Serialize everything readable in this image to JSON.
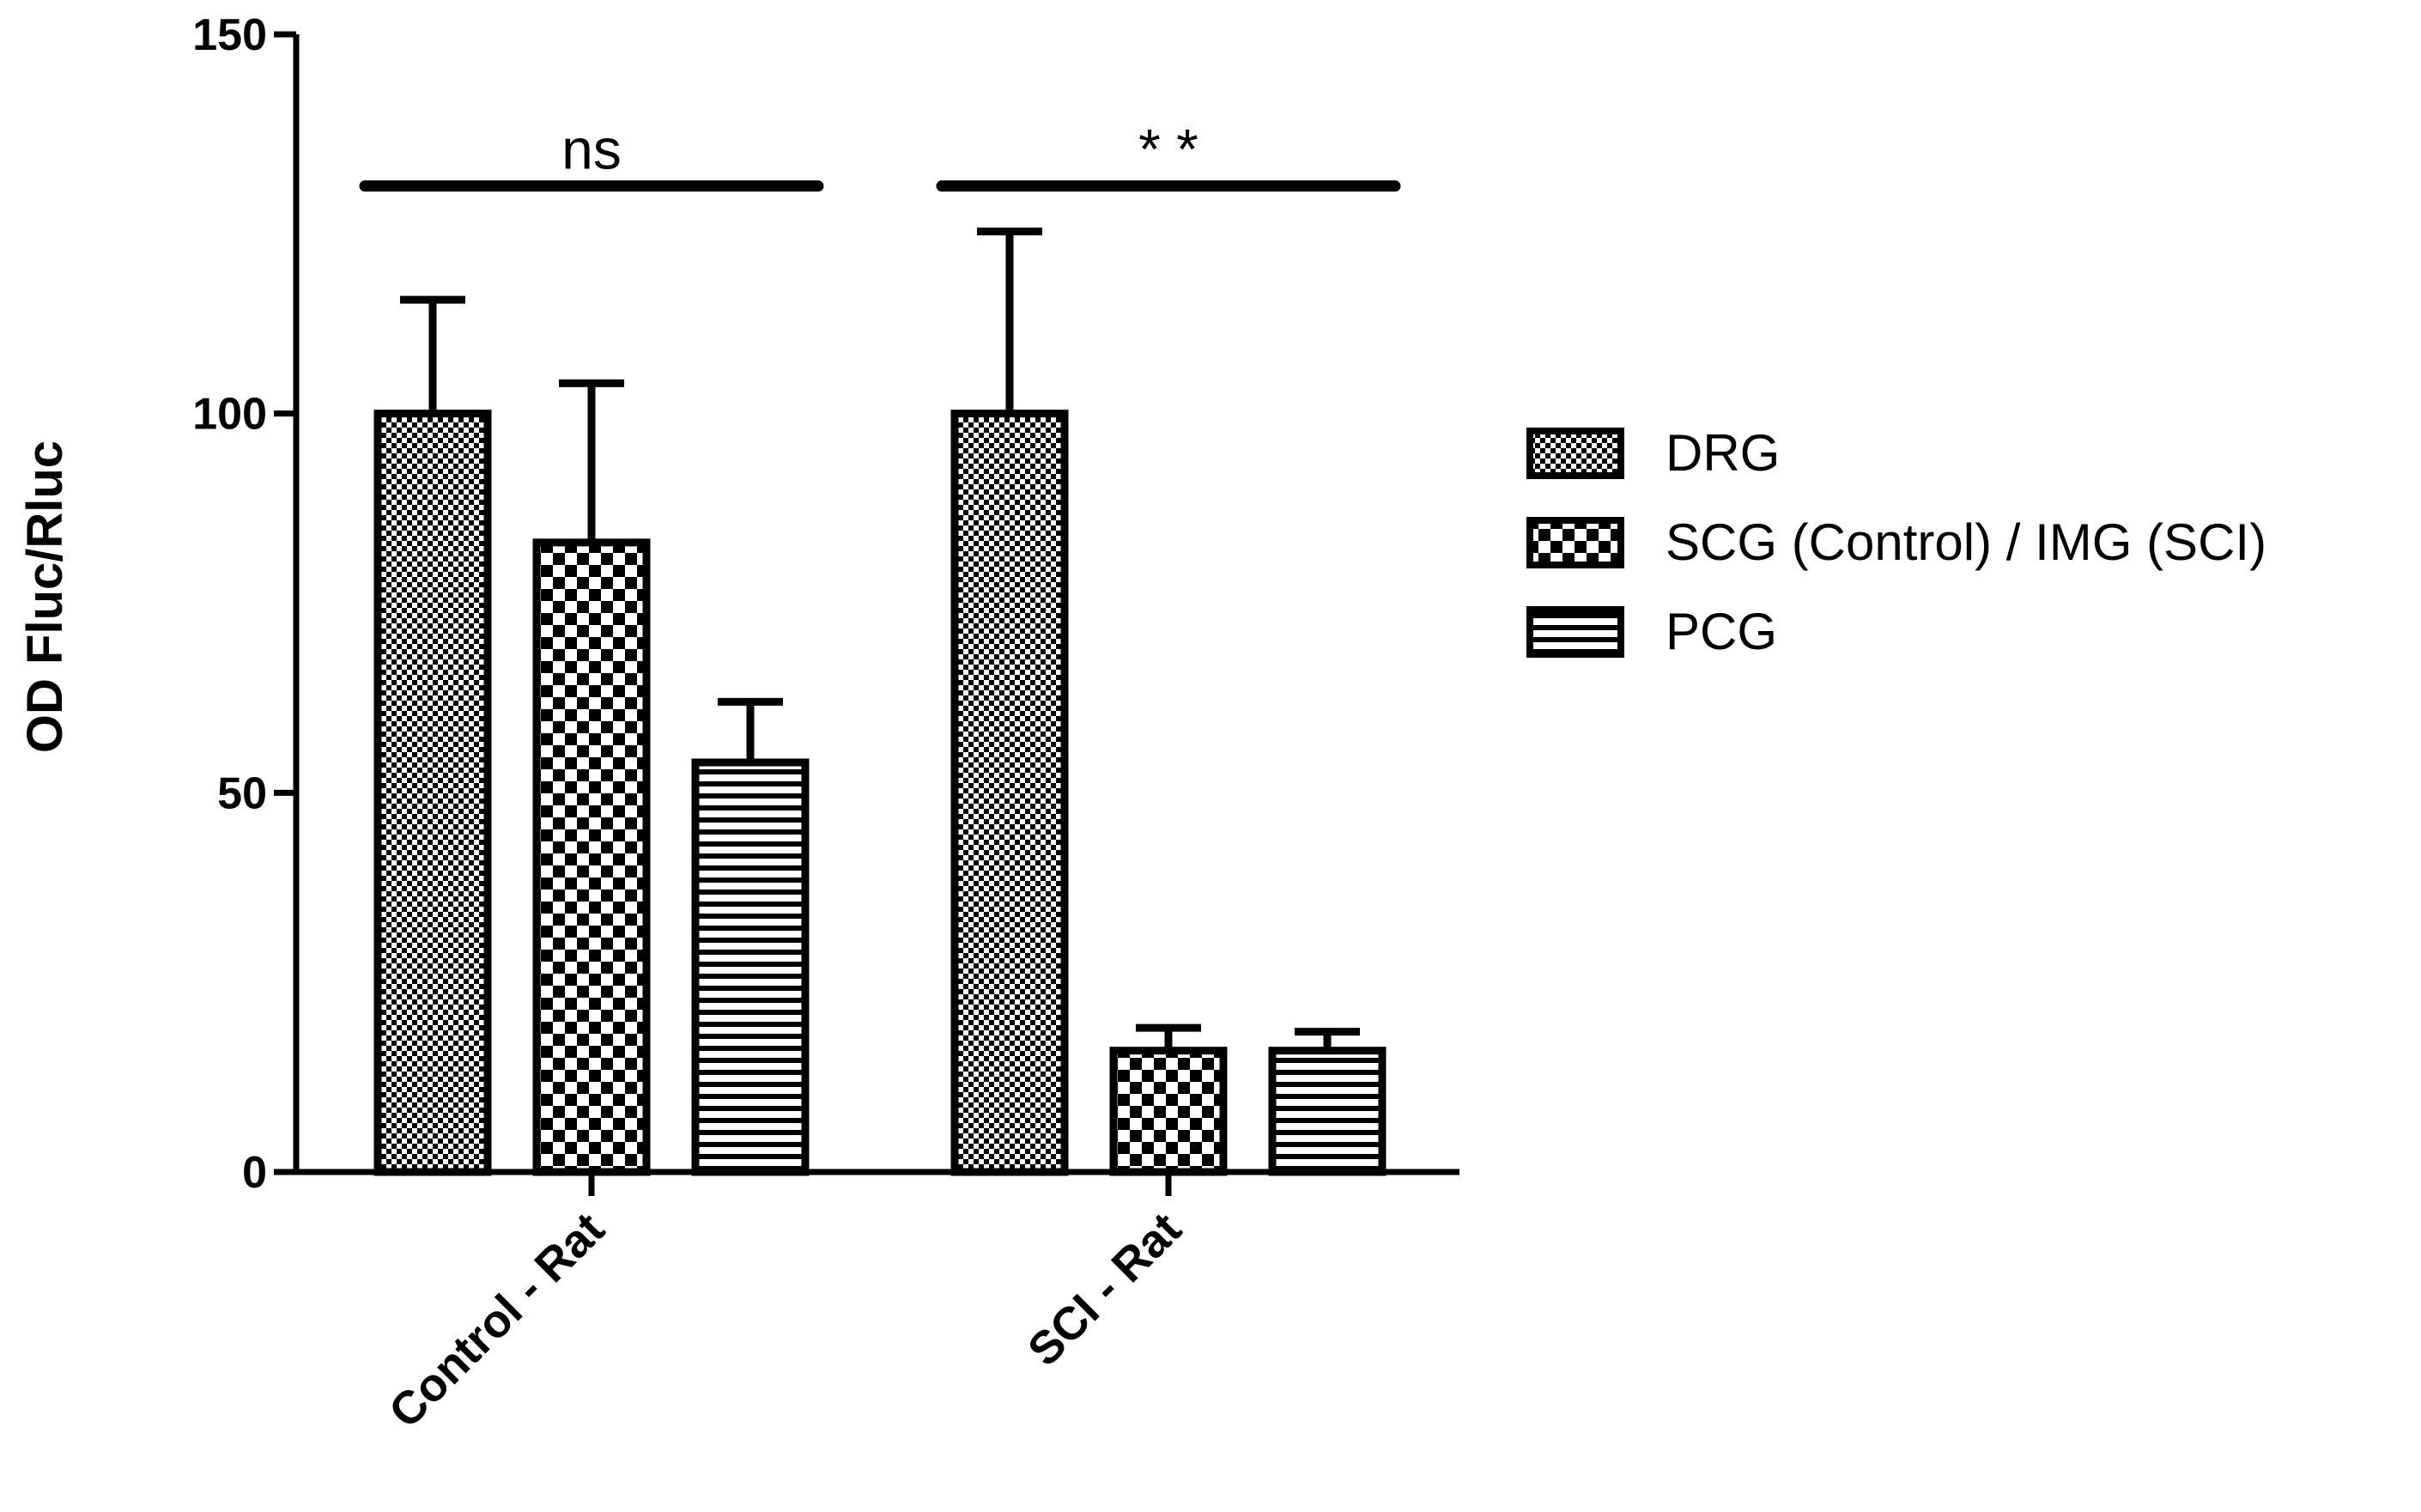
{
  "chart_data": {
    "type": "bar",
    "ylabel": "OD Fluc/Rluc",
    "ylim": [
      0,
      150
    ],
    "yticks": [
      0,
      50,
      100,
      150
    ],
    "categories": [
      "Control - Rat",
      "SCI - Rat"
    ],
    "series": [
      {
        "name": "DRG",
        "values": [
          100,
          100
        ],
        "errors": [
          15,
          24
        ],
        "pattern": "fine-check"
      },
      {
        "name": "SCG (Control) / IMG (SCI)",
        "values": [
          83,
          16
        ],
        "errors": [
          21,
          3
        ],
        "pattern": "coarse-check"
      },
      {
        "name": "PCG",
        "values": [
          54,
          16
        ],
        "errors": [
          8,
          2.5
        ],
        "pattern": "hstripes"
      }
    ],
    "significance": [
      {
        "category_index": 0,
        "label": "ns",
        "y": 130
      },
      {
        "category_index": 1,
        "label": "* *",
        "y": 130
      }
    ],
    "legend_position": "right",
    "grid": false,
    "colors": {
      "ink": "#000000",
      "background": "#ffffff"
    }
  }
}
